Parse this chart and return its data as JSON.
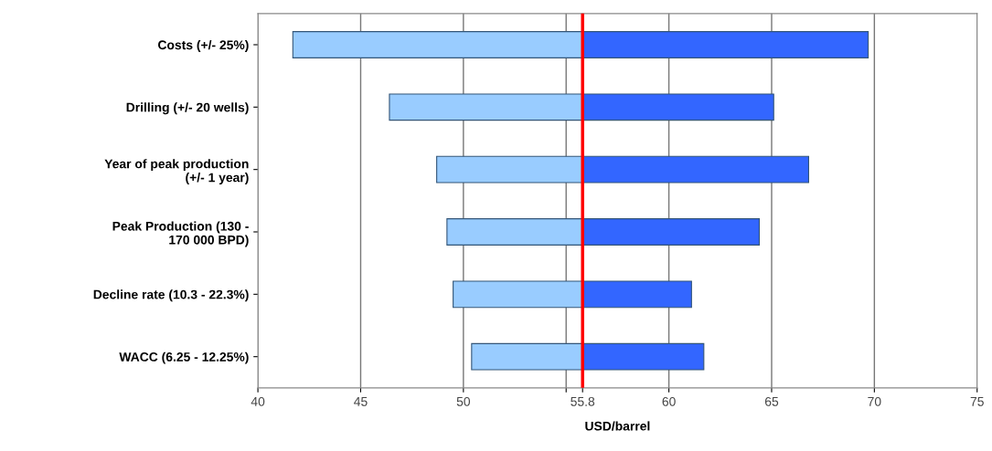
{
  "chart_data": {
    "type": "bar",
    "orientation": "horizontal",
    "xlabel": "USD/barrel",
    "categories": [
      "Costs (+/- 25%)",
      "Drilling (+/- 20 wells)",
      "Year of peak production\n(+/- 1 year)",
      "Peak Production (130 -\n170 000 BPD)",
      "Decline rate (10.3 - 22.3%)",
      "WACC (6.25 - 12.25%)"
    ],
    "series": [
      {
        "color": "#99ccff",
        "base": [
          41.7,
          46.4,
          48.7,
          49.2,
          49.5,
          50.4
        ],
        "values": [
          14.1,
          9.4,
          7.1,
          6.6,
          6.3,
          5.4
        ]
      },
      {
        "color": "#3366ff",
        "base": [
          55.8,
          55.8,
          55.8,
          55.8,
          55.8,
          55.8
        ],
        "values": [
          13.9,
          9.3,
          11.0,
          8.6,
          5.3,
          5.9
        ]
      }
    ],
    "xlim": [
      40,
      75
    ],
    "xticks": [
      40,
      45,
      50,
      {
        "value": 55,
        "label": null
      },
      55.8,
      60,
      65,
      70,
      75
    ],
    "grid": "x",
    "legend": false,
    "ref_lines": [
      {
        "axis": "x",
        "value": 55.8,
        "color": "#ff0000",
        "line_style": "solid"
      }
    ]
  }
}
